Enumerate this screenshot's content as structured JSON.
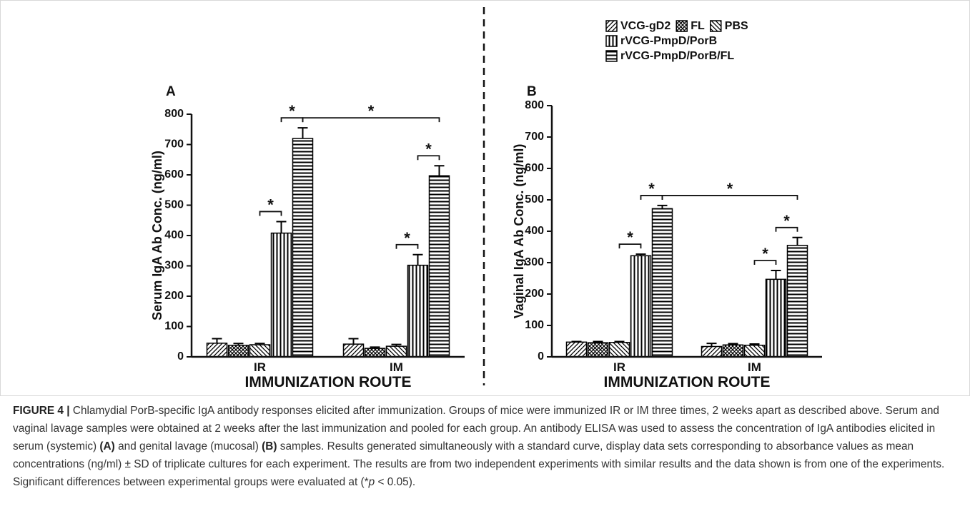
{
  "chart_data": [
    {
      "type": "bar",
      "panel": "A",
      "ylabel": "Serum IgA Ab Conc. (ng/ml)",
      "xlabel": "IMMUNIZATION ROUTE",
      "categories": [
        "IR",
        "IM"
      ],
      "ylim": [
        0,
        800
      ],
      "yticks": [
        0,
        100,
        200,
        300,
        400,
        500,
        600,
        700,
        800
      ],
      "series": [
        {
          "name": "VCG-gD2",
          "color": "#000000",
          "pattern": "diagonal",
          "values": [
            45,
            42
          ],
          "errors": [
            15,
            18
          ]
        },
        {
          "name": "FL",
          "color": "#000000",
          "pattern": "crosshatch",
          "values": [
            38,
            28
          ],
          "errors": [
            6,
            4
          ]
        },
        {
          "name": "PBS",
          "color": "#000000",
          "pattern": "antidiagonal",
          "values": [
            40,
            35
          ],
          "errors": [
            4,
            6
          ]
        },
        {
          "name": "rVCG-PmpD/PorB",
          "color": "#000000",
          "pattern": "vertical",
          "values": [
            408,
            302
          ],
          "errors": [
            38,
            35
          ]
        },
        {
          "name": "rVCG-PmpD/PorB/FL",
          "color": "#000000",
          "pattern": "horizontal",
          "values": [
            720,
            597
          ],
          "errors": [
            35,
            33
          ]
        }
      ],
      "annotations": [
        {
          "text": "*",
          "from": [
            "IR",
            "rVCG-PmpD/PorB"
          ],
          "to": [
            "IR",
            "rVCG-PmpD/PorB/FL"
          ]
        },
        {
          "text": "*",
          "from": [
            "IR",
            "rVCG-PmpD/PorB/FL"
          ],
          "to": [
            "IM",
            "rVCG-PmpD/PorB/FL"
          ]
        },
        {
          "text": "*",
          "from": [
            "IM",
            "PBS"
          ],
          "to": [
            "IM",
            "rVCG-PmpD/PorB"
          ]
        },
        {
          "text": "*",
          "from": [
            "IM",
            "rVCG-PmpD/PorB"
          ],
          "to": [
            "IM",
            "rVCG-PmpD/PorB/FL"
          ]
        },
        {
          "text": "*",
          "from": [
            "IR",
            "PBS"
          ],
          "to": [
            "IR",
            "rVCG-PmpD/PorB"
          ]
        }
      ]
    },
    {
      "type": "bar",
      "panel": "B",
      "ylabel": "Vaginal IgA Ab Conc. (ng/ml)",
      "xlabel": "IMMUNIZATION ROUTE",
      "categories": [
        "IR",
        "IM"
      ],
      "legend": "top-right",
      "ylim": [
        0,
        800
      ],
      "yticks": [
        0,
        100,
        200,
        300,
        400,
        500,
        600,
        700,
        800
      ],
      "series": [
        {
          "name": "VCG-gD2",
          "color": "#000000",
          "pattern": "diagonal",
          "values": [
            47,
            33
          ],
          "errors": [
            2,
            10
          ]
        },
        {
          "name": "FL",
          "color": "#000000",
          "pattern": "crosshatch",
          "values": [
            45,
            38
          ],
          "errors": [
            4,
            4
          ]
        },
        {
          "name": "PBS",
          "color": "#000000",
          "pattern": "antidiagonal",
          "values": [
            46,
            37
          ],
          "errors": [
            3,
            4
          ]
        },
        {
          "name": "rVCG-PmpD/PorB",
          "color": "#000000",
          "pattern": "vertical",
          "values": [
            322,
            247
          ],
          "errors": [
            5,
            28
          ]
        },
        {
          "name": "rVCG-PmpD/PorB/FL",
          "color": "#000000",
          "pattern": "horizontal",
          "values": [
            472,
            355
          ],
          "errors": [
            10,
            25
          ]
        }
      ],
      "annotations": [
        {
          "text": "*",
          "from": [
            "IR",
            "PBS"
          ],
          "to": [
            "IR",
            "rVCG-PmpD/PorB"
          ]
        },
        {
          "text": "*",
          "from": [
            "IR",
            "rVCG-PmpD/PorB"
          ],
          "to": [
            "IR",
            "rVCG-PmpD/PorB/FL"
          ]
        },
        {
          "text": "*",
          "from": [
            "IR",
            "rVCG-PmpD/PorB/FL"
          ],
          "to": [
            "IM",
            "rVCG-PmpD/PorB/FL"
          ]
        },
        {
          "text": "*",
          "from": [
            "IM",
            "PBS"
          ],
          "to": [
            "IM",
            "rVCG-PmpD/PorB"
          ]
        },
        {
          "text": "*",
          "from": [
            "IM",
            "rVCG-PmpD/PorB"
          ],
          "to": [
            "IM",
            "rVCG-PmpD/PorB/FL"
          ]
        }
      ]
    }
  ],
  "caption": {
    "label": "FIGURE 4 |",
    "parts": [
      " Chlamydial PorB-specific IgA antibody responses elicited after immunization. Groups of mice were immunized IR or IM three times, 2 weeks apart as described above. Serum and vaginal lavage samples were obtained at 2 weeks after the last immunization and pooled for each group. An antibody ELISA was used to assess the concentration of IgA antibodies elicited in serum (systemic) ",
      "(A)",
      " and genital lavage (mucosal) ",
      "(B)",
      " samples. Results generated simultaneously with a standard curve, display data sets corresponding to absorbance values as mean concentrations (ng/ml) ± SD of triplicate cultures for each experiment. The results are from two independent experiments with similar results and the data shown is from one of the experiments. Significant differences between experimental groups were evaluated at (*",
      "p",
      " < 0.05)."
    ]
  }
}
